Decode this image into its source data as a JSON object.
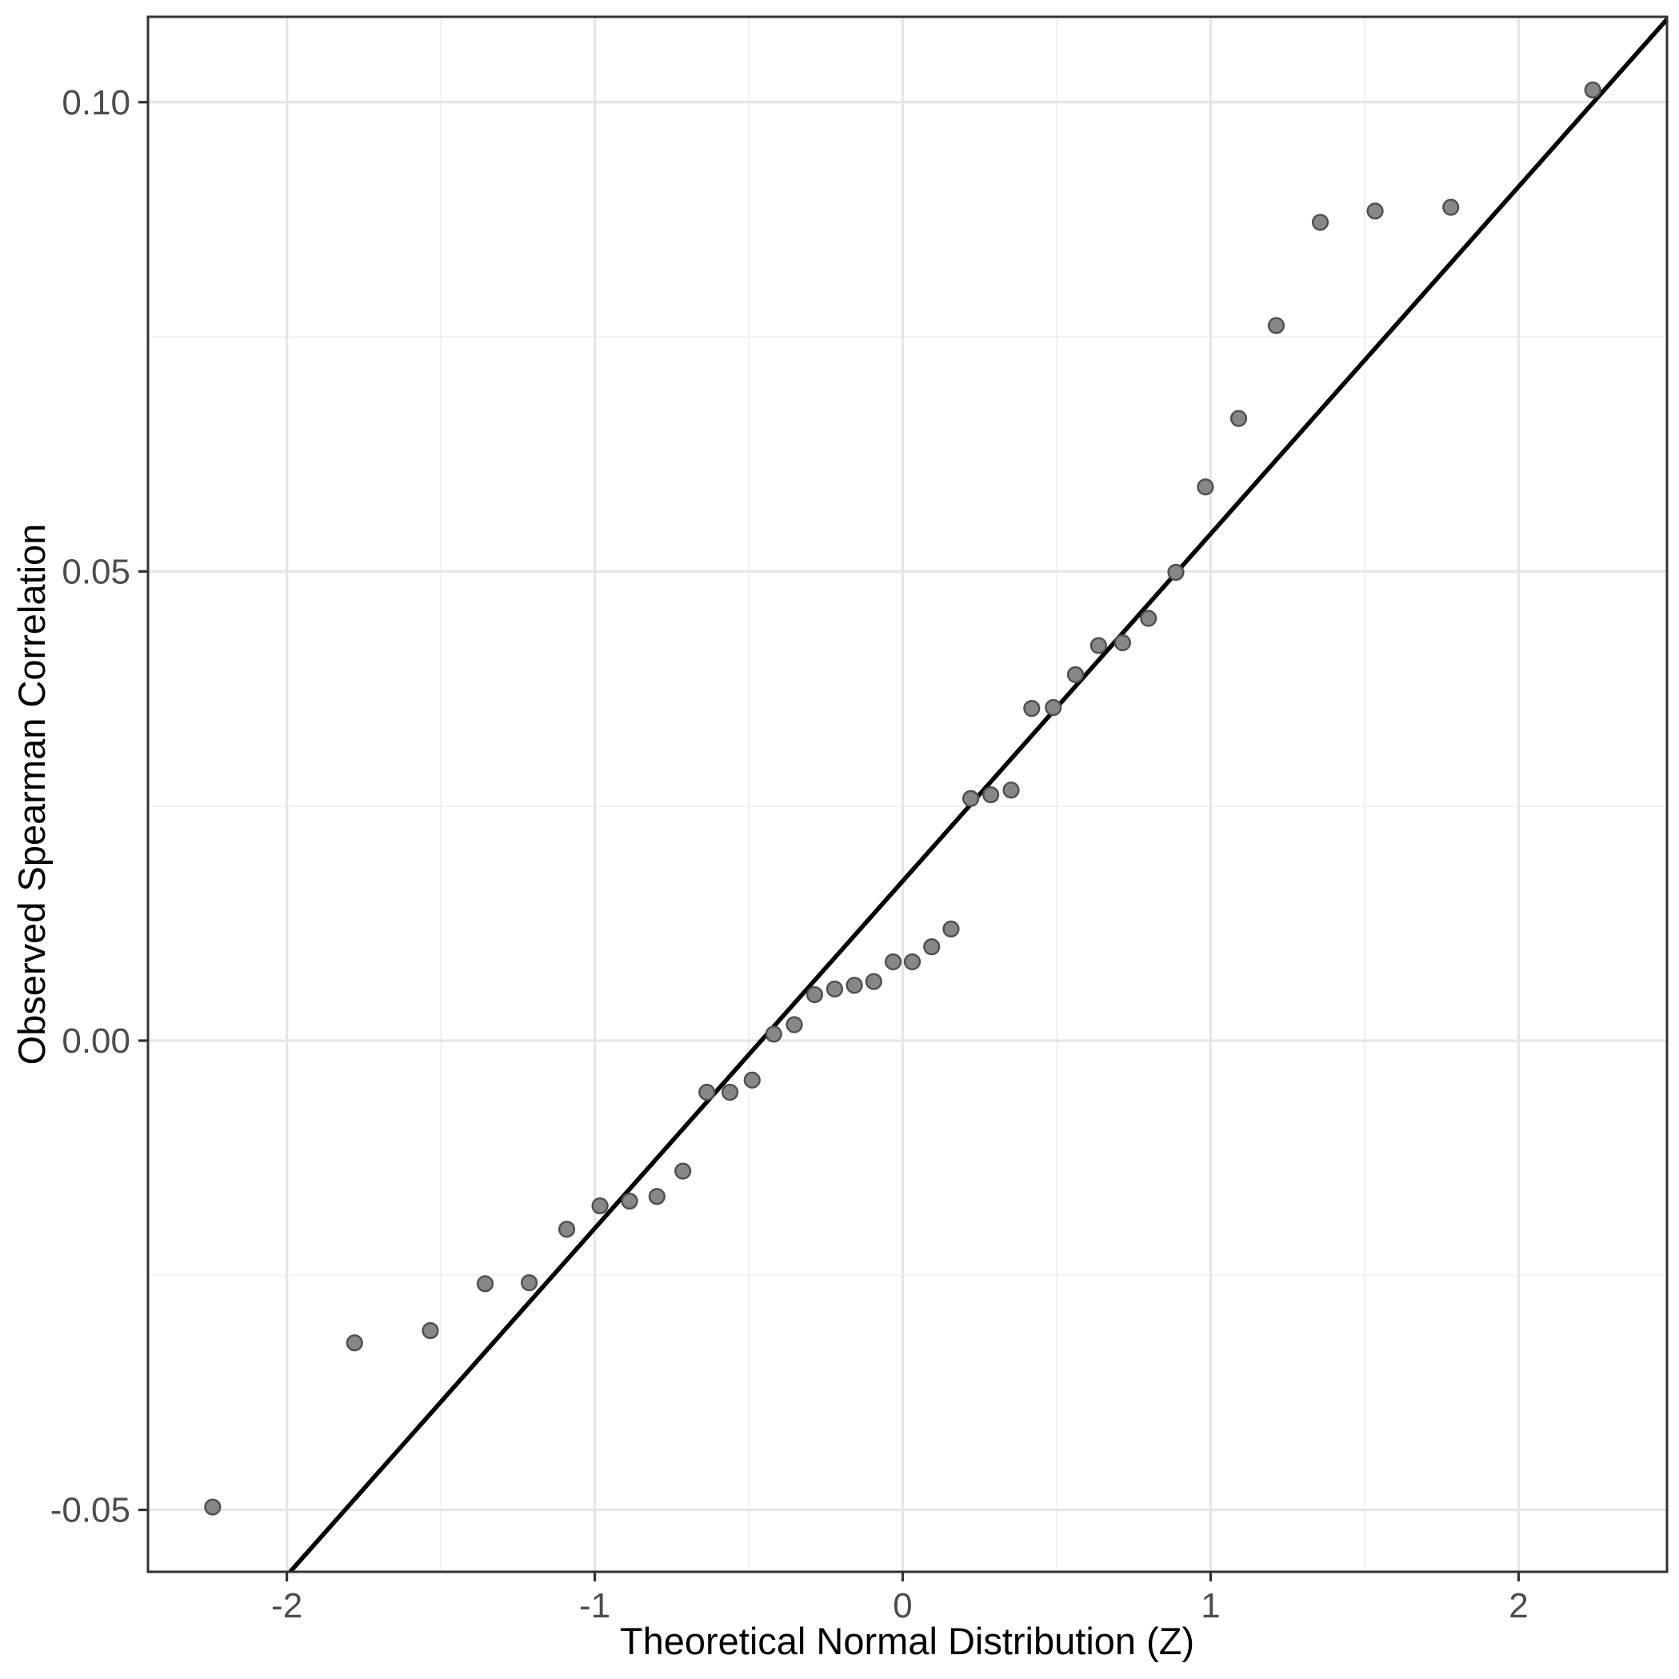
{
  "figure": {
    "background": "#ffffff"
  },
  "chart_data": {
    "type": "scatter",
    "title": "",
    "xlabel": "Theoretical Normal Distribution (Z)",
    "ylabel": "Observed Spearman Correlation",
    "xlim": [
      -2.451,
      2.482
    ],
    "ylim": [
      -0.0566,
      0.1091
    ],
    "x_major_ticks": [
      -2,
      -1,
      0,
      1,
      2
    ],
    "x_tick_labels": [
      "-2",
      "-1",
      "0",
      "1",
      "2"
    ],
    "x_minor_ticks": [
      -1.5,
      -0.5,
      0.5,
      1.5
    ],
    "y_major_ticks": [
      -0.05,
      0,
      0.05,
      0.1
    ],
    "y_tick_labels": [
      "-0.05",
      "0.00",
      "0.05",
      "0.10"
    ],
    "y_minor_ticks": [
      -0.025,
      0.025,
      0.075
    ],
    "grid": "major+minor",
    "legend": false,
    "reference_line": {
      "slope": 0.037,
      "intercept": 0.017
    },
    "series": [
      {
        "name": "sample-quantiles",
        "points": [
          [
            -2.241,
            -0.0497
          ],
          [
            -1.78,
            -0.0322
          ],
          [
            -1.534,
            -0.0309
          ],
          [
            -1.356,
            -0.0259
          ],
          [
            -1.213,
            -0.0258
          ],
          [
            -1.091,
            -0.0201
          ],
          [
            -0.983,
            -0.0176
          ],
          [
            -0.887,
            -0.0171
          ],
          [
            -0.798,
            -0.0166
          ],
          [
            -0.714,
            -0.0139
          ],
          [
            -0.636,
            -0.0055
          ],
          [
            -0.561,
            -0.0055
          ],
          [
            -0.489,
            -0.0042
          ],
          [
            -0.419,
            0.0007
          ],
          [
            -0.352,
            0.0017
          ],
          [
            -0.286,
            0.0049
          ],
          [
            -0.221,
            0.0055
          ],
          [
            -0.157,
            0.0059
          ],
          [
            -0.094,
            0.0063
          ],
          [
            -0.031,
            0.0084
          ],
          [
            0.031,
            0.0084
          ],
          [
            0.094,
            0.01
          ],
          [
            0.157,
            0.0119
          ],
          [
            0.221,
            0.0258
          ],
          [
            0.286,
            0.0262
          ],
          [
            0.352,
            0.0267
          ],
          [
            0.419,
            0.0354
          ],
          [
            0.489,
            0.0355
          ],
          [
            0.561,
            0.039
          ],
          [
            0.636,
            0.0421
          ],
          [
            0.714,
            0.0424
          ],
          [
            0.798,
            0.045
          ],
          [
            0.887,
            0.0499
          ],
          [
            0.983,
            0.059
          ],
          [
            1.091,
            0.0663
          ],
          [
            1.213,
            0.0762
          ],
          [
            1.356,
            0.0872
          ],
          [
            1.534,
            0.0884
          ],
          [
            1.78,
            0.0888
          ],
          [
            2.241,
            0.1013
          ]
        ]
      }
    ],
    "style": {
      "point_fill": "#878787",
      "point_stroke": "#4f4f4f",
      "point_radius": 9.4,
      "point_stroke_width": 2.4,
      "ref_line_color": "#000000",
      "ref_line_width": 5.5,
      "grid_major_color": "#e6e6e6",
      "grid_minor_color": "#f0f0f0",
      "grid_major_width": 3.2,
      "grid_minor_width": 1.8,
      "panel_border_color": "#333333",
      "panel_border_width": 3,
      "tick_color": "#333333",
      "tick_width": 3.2,
      "tick_length": 12,
      "tick_label_color": "#4d4d4d",
      "axis_title_color": "#000000",
      "panel_background": "#ffffff"
    }
  }
}
